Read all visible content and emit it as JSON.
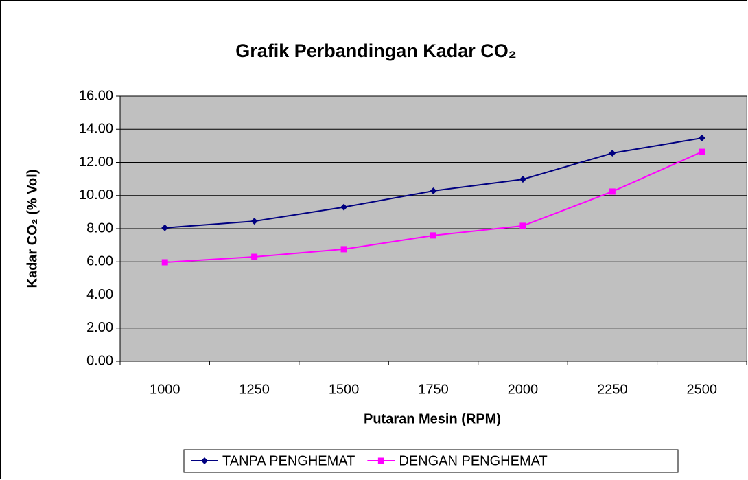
{
  "chart_data": {
    "type": "line",
    "title": "Grafik Perbandingan Kadar CO₂",
    "x_label": "Putaran Mesin (RPM)",
    "y_label": "Kadar CO₂ (% Vol)",
    "categories": [
      "1000",
      "1250",
      "1500",
      "1750",
      "2000",
      "2250",
      "2500"
    ],
    "series": [
      {
        "name": "TANPA PENGHEMAT",
        "color": "#000080",
        "marker": "diamond",
        "values": [
          8.05,
          8.45,
          9.3,
          10.28,
          10.98,
          12.56,
          13.47
        ]
      },
      {
        "name": "DENGAN PENGHEMAT",
        "color": "#ff00ff",
        "marker": "square",
        "values": [
          5.97,
          6.3,
          6.76,
          7.59,
          8.17,
          10.24,
          12.64
        ]
      }
    ],
    "ylim": [
      0,
      16
    ],
    "yticks": [
      {
        "value": 0,
        "label": "0.00"
      },
      {
        "value": 2,
        "label": "2.00"
      },
      {
        "value": 4,
        "label": "4.00"
      },
      {
        "value": 6,
        "label": "6.00"
      },
      {
        "value": 8,
        "label": "8.00"
      },
      {
        "value": 10,
        "label": "10.00"
      },
      {
        "value": 12,
        "label": "12.00"
      },
      {
        "value": 14,
        "label": "14.00"
      },
      {
        "value": 16,
        "label": "16.00"
      }
    ],
    "grid": true,
    "legend": "bottom"
  }
}
